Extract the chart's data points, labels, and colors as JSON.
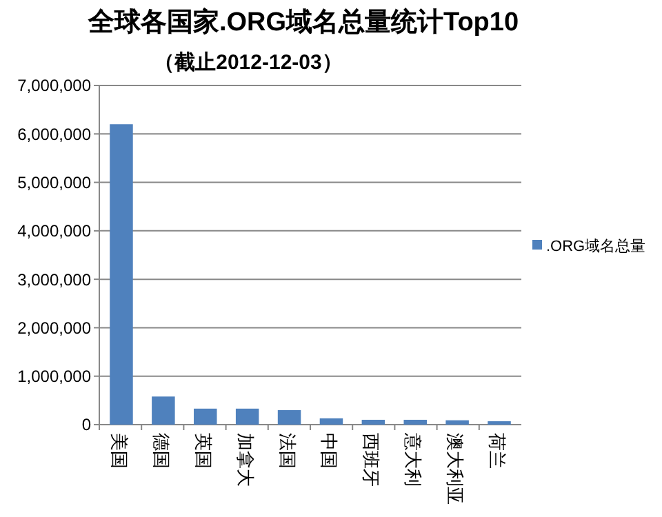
{
  "chart_data": {
    "type": "bar",
    "title": "全球各国家.ORG域名总量统计Top10",
    "subtitle": "（截止2012-12-03）",
    "categories": [
      "美国",
      "德国",
      "英国",
      "加拿大",
      "法国",
      "中国",
      "西班牙",
      "意大利",
      "澳大利亚",
      "荷兰"
    ],
    "series": [
      {
        "name": ".ORG域名总量",
        "color": "#4f81bd",
        "values": [
          6200000,
          580000,
          330000,
          330000,
          300000,
          130000,
          100000,
          100000,
          90000,
          70000
        ]
      }
    ],
    "ylim": [
      0,
      7000000
    ],
    "yticks": [
      {
        "value": 0,
        "label": "0"
      },
      {
        "value": 1000000,
        "label": "1,000,000"
      },
      {
        "value": 2000000,
        "label": "2,000,000"
      },
      {
        "value": 3000000,
        "label": "3,000,000"
      },
      {
        "value": 4000000,
        "label": "4,000,000"
      },
      {
        "value": 5000000,
        "label": "5,000,000"
      },
      {
        "value": 6000000,
        "label": "6,000,000"
      },
      {
        "value": 7000000,
        "label": "7,000,000"
      }
    ],
    "grid": "y",
    "legend": "right"
  }
}
